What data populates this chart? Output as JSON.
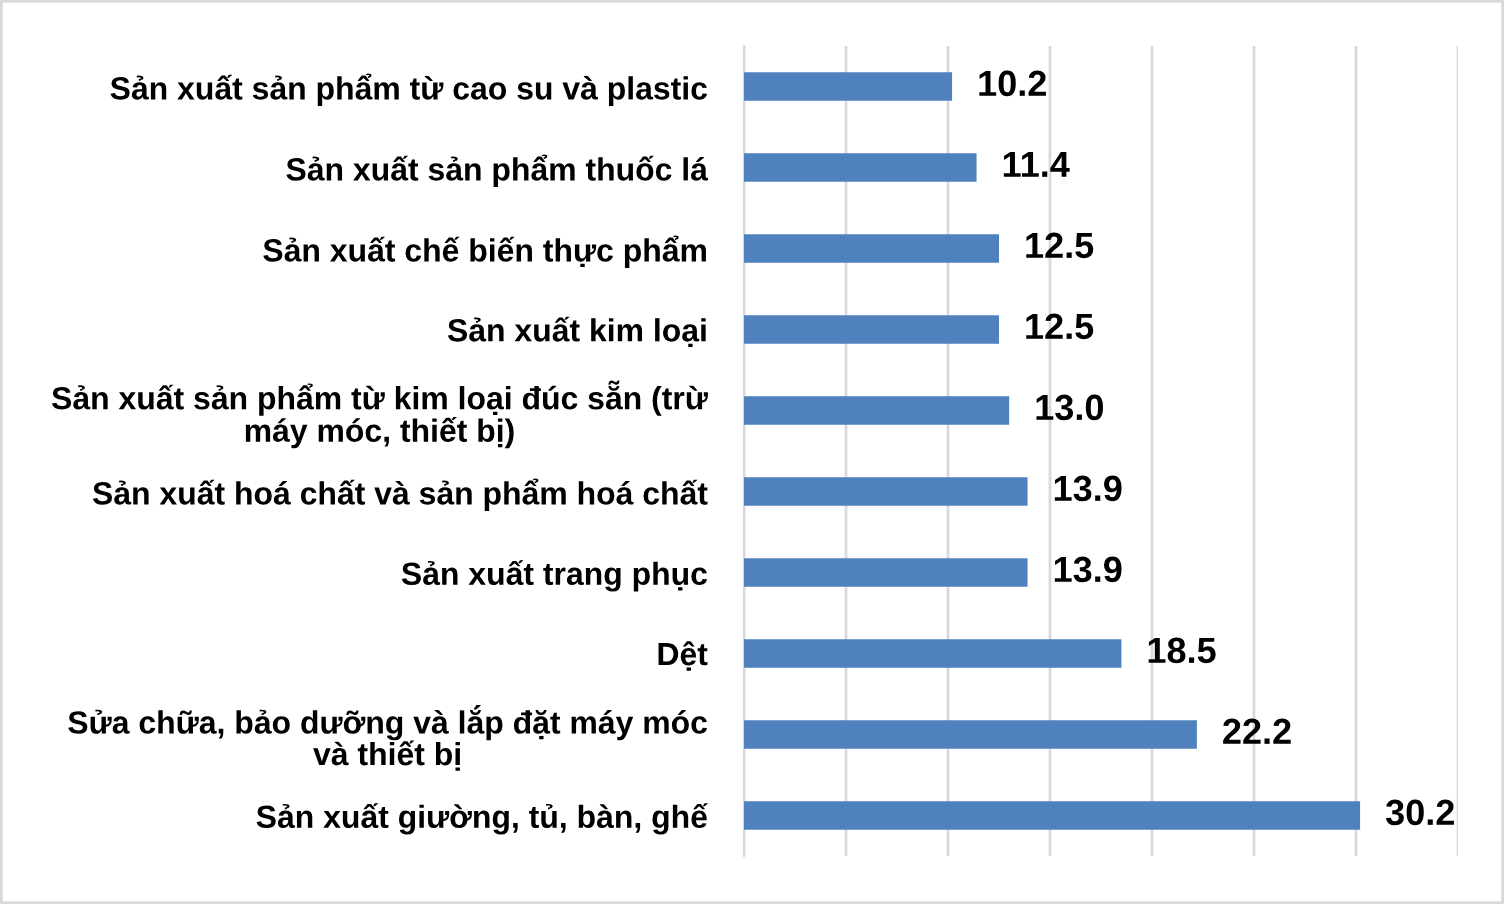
{
  "chart_data": {
    "type": "bar",
    "orientation": "horizontal",
    "categories": [
      "Sản xuất sản phẩm từ cao su và plastic",
      "Sản xuất sản phẩm thuốc lá",
      "Sản xuất chế biến thực phẩm",
      "Sản xuất kim loại",
      "Sản xuất sản phẩm từ kim loại đúc sẵn (trừ\nmáy móc, thiết bị)",
      "Sản xuất hoá chất và sản phẩm hoá chất",
      "Sản xuất trang phục",
      "Dệt",
      "Sửa chữa, bảo dưỡng và lắp đặt máy móc\nvà thiết bị",
      "Sản xuất giường, tủ, bàn, ghế"
    ],
    "values": [
      10.2,
      11.4,
      12.5,
      12.5,
      13.0,
      13.9,
      13.9,
      18.5,
      22.2,
      30.2
    ],
    "value_labels": [
      "10.2",
      "11.4",
      "12.5",
      "12.5",
      "13.0",
      "13.9",
      "13.9",
      "18.5",
      "22.2",
      "30.2"
    ],
    "color": "#4f81bd",
    "xlim": [
      0,
      35
    ],
    "xticks": [
      {
        "value": 0,
        "label": null
      },
      {
        "value": 5,
        "label": null
      },
      {
        "value": 10,
        "label": null
      },
      {
        "value": 15,
        "label": null
      },
      {
        "value": 20,
        "label": null
      },
      {
        "value": 25,
        "label": null
      },
      {
        "value": 30,
        "label": null
      },
      {
        "value": 35,
        "label": null
      }
    ],
    "grid": "x",
    "legend": false,
    "tick_labels": "y"
  }
}
